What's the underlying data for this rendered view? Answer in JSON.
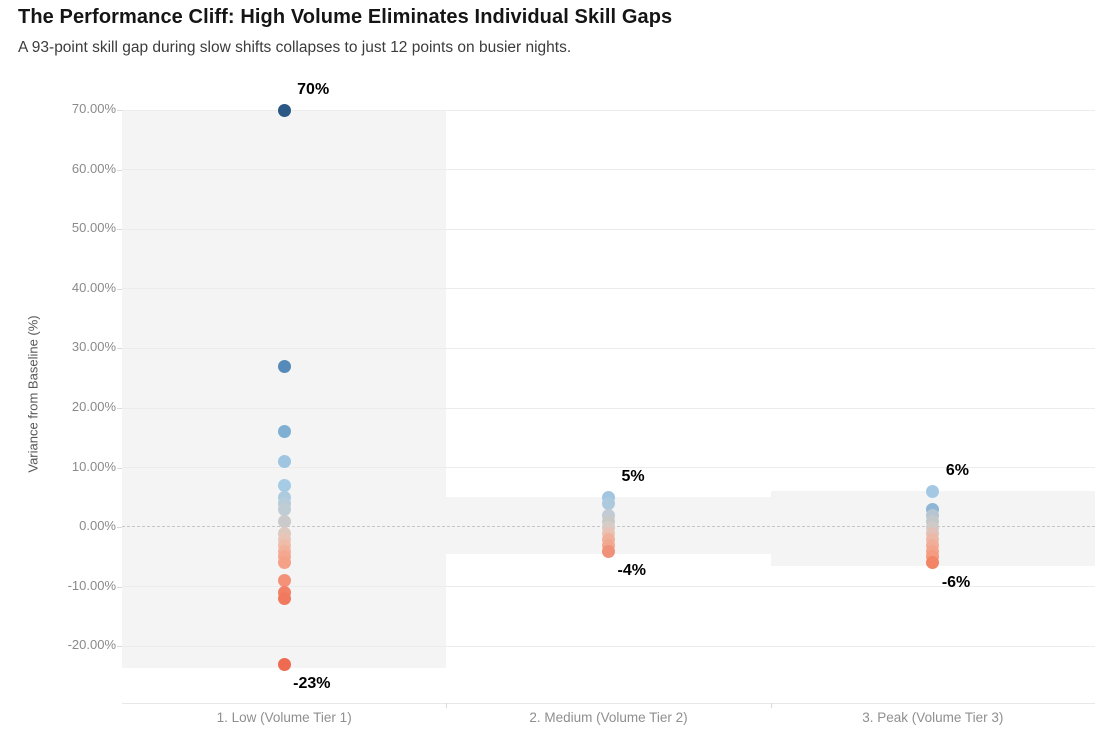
{
  "header": {
    "title": "The Performance Cliff: High Volume Eliminates Individual Skill Gaps",
    "subtitle": "A 93-point skill gap during slow shifts collapses to just 12 points on busier nights."
  },
  "palette": {
    "background": "#ffffff",
    "reference_band": "#f4f4f4",
    "gridline": "#ececec",
    "zero_line": "#c6c6c6",
    "axis_tick_mark": "#d9d9d9",
    "axis_tick_label": "#8a8a8a",
    "axis_title": "#575757",
    "x_axis_label": "#8f8f8f",
    "annotation_text": "#000000",
    "title_text": "#151515",
    "subtitle_text": "#3c3c3c",
    "extreme_high_blue": "#2a5783",
    "extreme_low_red": "#ee6a50"
  },
  "chart_data": {
    "type": "scatter",
    "variant": "strip-plot-with-reference-bands",
    "title": "The Performance Cliff: High Volume Eliminates Individual Skill Gaps",
    "subtitle": "A 93-point skill gap during slow shifts collapses to just 12 points on busier nights.",
    "xlabel": "",
    "ylabel": "Variance from Baseline (%)",
    "ylim": [
      -29.5,
      74.2
    ],
    "ytick_values": [
      70,
      60,
      50,
      40,
      30,
      20,
      10,
      0,
      -10,
      -20
    ],
    "ytick_labels": [
      "70.00%",
      "60.00%",
      "50.00%",
      "40.00%",
      "30.00%",
      "20.00%",
      "10.00%",
      "0.00%",
      "-10.00%",
      "-20.00%"
    ],
    "grid": "horizontal",
    "legend": "none",
    "zero_reference_line": {
      "value": 0,
      "style": "dashed"
    },
    "categories": [
      {
        "label": "1. Low (Volume Tier 1)",
        "band": {
          "max": 70,
          "min": -23.6
        },
        "max_annotation": "70%",
        "min_annotation": "-23%",
        "points": [
          {
            "value": 70,
            "color": "#2a5783"
          },
          {
            "value": 27,
            "color": "#568bb9"
          },
          {
            "value": 16,
            "color": "#7fafd3"
          },
          {
            "value": 11,
            "color": "#a0c5e1"
          },
          {
            "value": 7,
            "color": "#a6cbe5"
          },
          {
            "value": 5,
            "color": "#adcbdf"
          },
          {
            "value": 4,
            "color": "#b7ccda"
          },
          {
            "value": 3,
            "color": "#c0ccd4"
          },
          {
            "value": 1,
            "color": "#c9cac9"
          },
          {
            "value": -1,
            "color": "#ddc9c0"
          },
          {
            "value": -2,
            "color": "#e9c5b7"
          },
          {
            "value": -3,
            "color": "#efbcaa"
          },
          {
            "value": -4,
            "color": "#f2b19b"
          },
          {
            "value": -5,
            "color": "#f4a891"
          },
          {
            "value": -6,
            "color": "#f5a188"
          },
          {
            "value": -9,
            "color": "#f49179"
          },
          {
            "value": -11,
            "color": "#f28067"
          },
          {
            "value": -12,
            "color": "#f0795e"
          },
          {
            "value": -23,
            "color": "#ee6a50"
          }
        ]
      },
      {
        "label": "2. Medium (Volume Tier 2)",
        "band": {
          "max": 5,
          "min": -4.5
        },
        "max_annotation": "5%",
        "min_annotation": "-4%",
        "points": [
          {
            "value": 5,
            "color": "#a2c6e1"
          },
          {
            "value": 4,
            "color": "#adc9de"
          },
          {
            "value": 2,
            "color": "#c0cbd3"
          },
          {
            "value": 1,
            "color": "#c9cac8"
          },
          {
            "value": 0,
            "color": "#d6ccc5"
          },
          {
            "value": -1,
            "color": "#e8c3b5"
          },
          {
            "value": -2,
            "color": "#f0b19c"
          },
          {
            "value": -3,
            "color": "#f2a78f"
          },
          {
            "value": -4,
            "color": "#f0917a"
          }
        ]
      },
      {
        "label": "3. Peak (Volume Tier 3)",
        "band": {
          "max": 6,
          "min": -6.5
        },
        "max_annotation": "6%",
        "min_annotation": "-6%",
        "points": [
          {
            "value": 6,
            "color": "#a4c8e3"
          },
          {
            "value": 3,
            "color": "#8fb6d4"
          },
          {
            "value": 2,
            "color": "#b5c5d1"
          },
          {
            "value": 1,
            "color": "#c3c8cb"
          },
          {
            "value": 0,
            "color": "#cfcac7"
          },
          {
            "value": -1,
            "color": "#e2c2b8"
          },
          {
            "value": -2,
            "color": "#ecb9a8"
          },
          {
            "value": -3,
            "color": "#f0ae99"
          },
          {
            "value": -4,
            "color": "#f3a48c"
          },
          {
            "value": -5,
            "color": "#f49b81"
          },
          {
            "value": -6,
            "color": "#f18566"
          }
        ]
      }
    ]
  }
}
